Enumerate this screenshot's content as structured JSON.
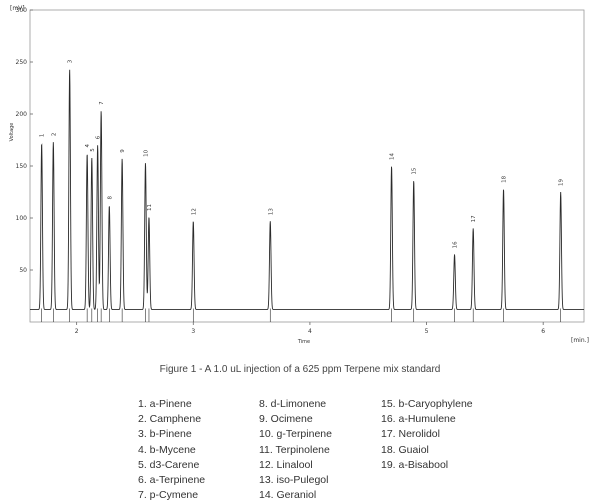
{
  "chart_data": {
    "type": "line",
    "title": "",
    "xlabel": "Time",
    "ylabel": "Voltage",
    "y_unit": "[mV]",
    "x_unit": "[min.]",
    "xlim": [
      1.6,
      6.35
    ],
    "ylim": [
      0,
      300
    ],
    "baseline": 12,
    "x_ticks": [
      2,
      3,
      4,
      5,
      6
    ],
    "y_ticks": [
      50,
      100,
      150,
      200,
      250,
      300
    ],
    "y_tick_labels": [
      "50",
      "100",
      "150",
      "200",
      "250",
      "300"
    ],
    "grid": false,
    "peaks": [
      {
        "label": "1",
        "x": 1.7,
        "y": 172
      },
      {
        "label": "2",
        "x": 1.8,
        "y": 173
      },
      {
        "label": "3",
        "x": 1.94,
        "y": 243
      },
      {
        "label": "4",
        "x": 2.09,
        "y": 162
      },
      {
        "label": "5",
        "x": 2.13,
        "y": 158
      },
      {
        "label": "6",
        "x": 2.18,
        "y": 170
      },
      {
        "label": "7",
        "x": 2.21,
        "y": 203
      },
      {
        "label": "8",
        "x": 2.28,
        "y": 112
      },
      {
        "label": "9",
        "x": 2.39,
        "y": 157
      },
      {
        "label": "10",
        "x": 2.59,
        "y": 153
      },
      {
        "label": "11",
        "x": 2.62,
        "y": 101
      },
      {
        "label": "12",
        "x": 3.0,
        "y": 97
      },
      {
        "label": "13",
        "x": 3.66,
        "y": 97
      },
      {
        "label": "14",
        "x": 4.7,
        "y": 150
      },
      {
        "label": "15",
        "x": 4.89,
        "y": 136
      },
      {
        "label": "16",
        "x": 5.24,
        "y": 65
      },
      {
        "label": "17",
        "x": 5.4,
        "y": 90
      },
      {
        "label": "18",
        "x": 5.66,
        "y": 128
      },
      {
        "label": "19",
        "x": 6.15,
        "y": 125
      }
    ]
  },
  "caption": "Figure 1 - A 1.0 uL injection of a 625 ppm Terpene mix standard",
  "legend": {
    "column1": [
      "1. a-Pinene",
      "2. Camphene",
      "3. b-Pinene",
      "4. b-Mycene",
      "5. d3-Carene",
      "6. a-Terpinene",
      "7. p-Cymene"
    ],
    "column2": [
      "8. d-Limonene",
      "9. Ocimene",
      "10. g-Terpinene",
      "11. Terpinolene",
      "12. Linalool",
      "13. iso-Pulegol",
      "14. Geraniol"
    ],
    "column3": [
      "15. b-Caryophylene",
      "16. a-Humulene",
      "17. Nerolidol",
      "18. Guaiol",
      "19. a-Bisabool"
    ]
  },
  "colors": {
    "trace": "#2b2b2b",
    "axis": "#666666",
    "text": "#333333"
  }
}
